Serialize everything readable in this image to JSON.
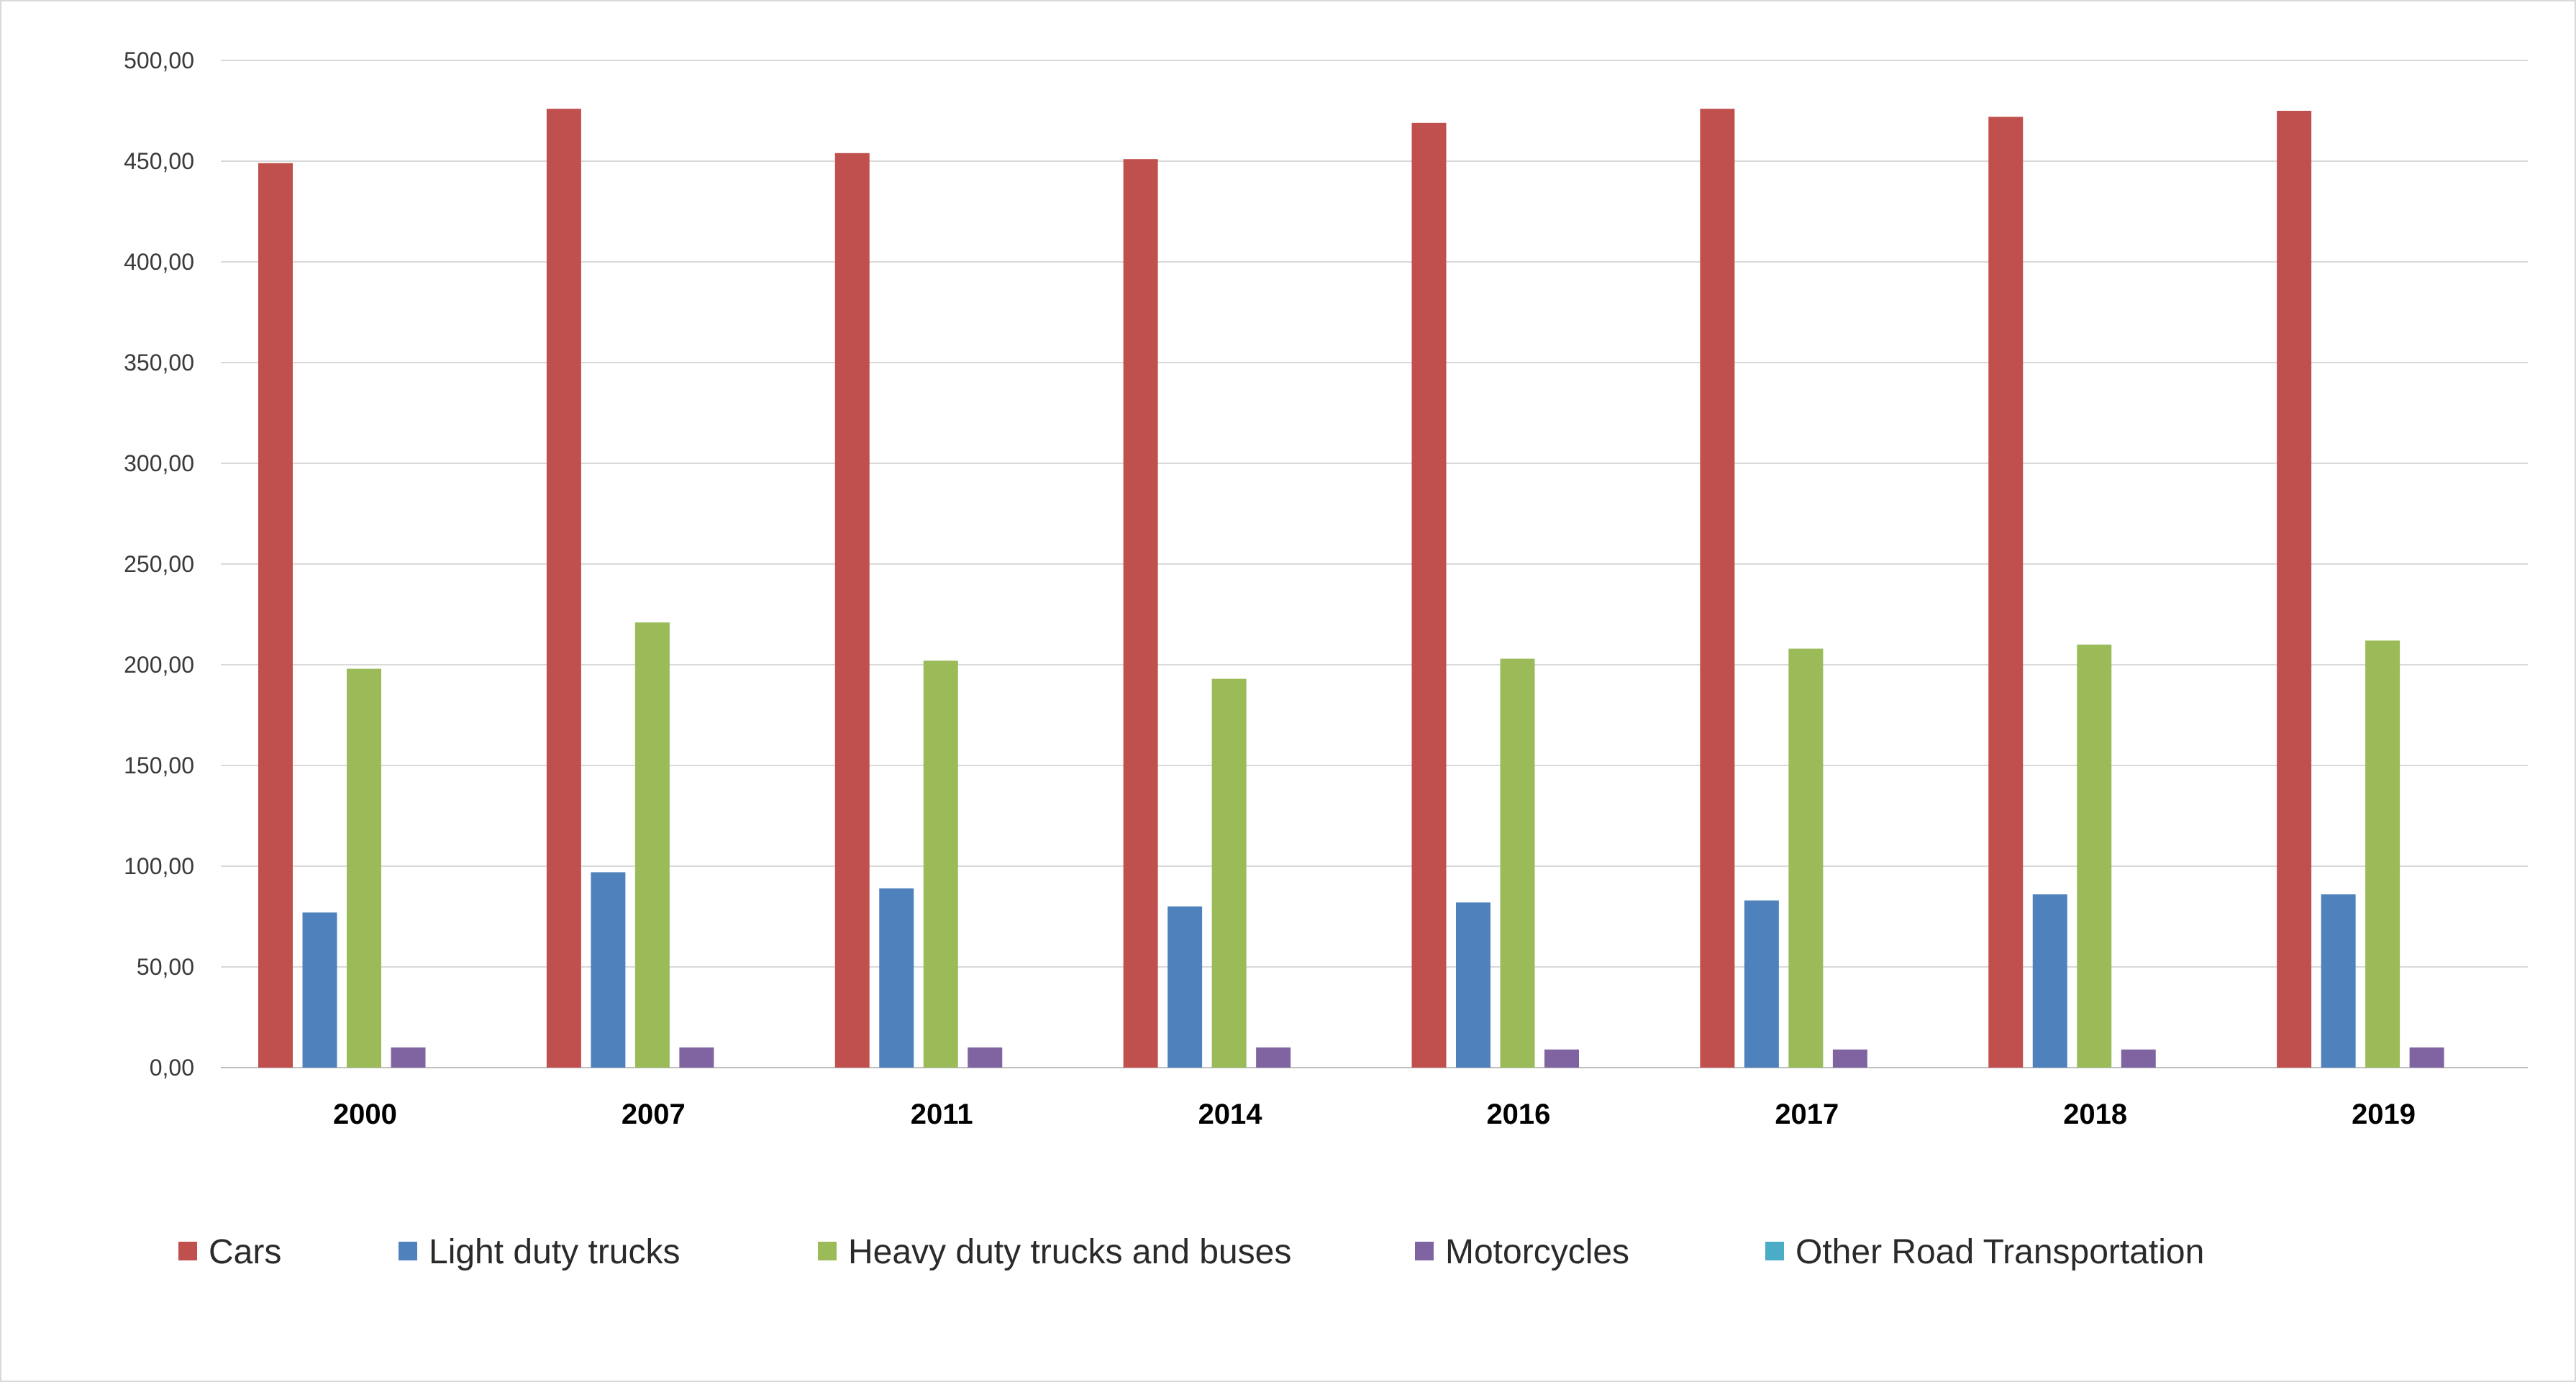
{
  "chart_data": {
    "type": "bar",
    "title": "",
    "xlabel": "",
    "ylabel": "",
    "ylim": [
      0,
      500
    ],
    "y_ticks": [
      "0,00",
      "50,00",
      "100,00",
      "150,00",
      "200,00",
      "250,00",
      "300,00",
      "350,00",
      "400,00",
      "450,00",
      "500,00"
    ],
    "y_tick_values": [
      0,
      50,
      100,
      150,
      200,
      250,
      300,
      350,
      400,
      450,
      500
    ],
    "grid": true,
    "legend_position": "bottom",
    "categories": [
      "2000",
      "2007",
      "2011",
      "2014",
      "2016",
      "2017",
      "2018",
      "2019"
    ],
    "series": [
      {
        "name": "Cars",
        "color": "#c0504d",
        "values": [
          449,
          476,
          454,
          451,
          469,
          476,
          472,
          475
        ]
      },
      {
        "name": "Light duty trucks",
        "color": "#4f81bd",
        "values": [
          77,
          97,
          89,
          80,
          82,
          83,
          86,
          86
        ]
      },
      {
        "name": "Heavy duty trucks and buses",
        "color": "#9bbb59",
        "values": [
          198,
          221,
          202,
          193,
          203,
          208,
          210,
          212
        ]
      },
      {
        "name": "Motorcycles",
        "color": "#8064a2",
        "values": [
          10,
          10,
          10,
          10,
          9,
          9,
          9,
          10
        ]
      },
      {
        "name": "Other Road Transportation",
        "color": "#4bacc6",
        "values": [
          0,
          0,
          0,
          0,
          0,
          0,
          0,
          0
        ]
      }
    ]
  }
}
